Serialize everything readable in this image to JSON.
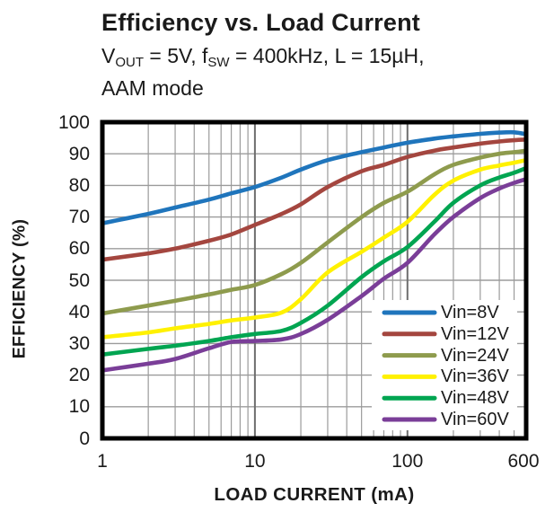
{
  "title": "Efficiency vs. Load Current",
  "subtitle_line1": [
    {
      "t": "V"
    },
    {
      "t": "OUT",
      "sub": true
    },
    {
      "t": " = 5V, f"
    },
    {
      "t": "SW",
      "sub": true
    },
    {
      "t": " = 400kHz, L = 15µH,"
    }
  ],
  "subtitle_line2": "AAM mode",
  "colors": {
    "text": "#1a1a1a",
    "frame": "#000000",
    "grid_minor": "#9b9b9b",
    "grid_major": "#6e6e6e",
    "legend_bg": "#ffffff"
  },
  "chart_data": {
    "type": "line",
    "title": "Efficiency vs. Load Current",
    "subtitle": "VOUT = 5V, fSW = 400kHz, L = 15µH, AAM mode",
    "xlabel": "LOAD CURRENT  (mA)",
    "ylabel": "EFFICIENCY  (%)",
    "x_scale": "log",
    "xlim": [
      1,
      600
    ],
    "ylim": [
      0,
      100
    ],
    "x_ticks": [
      1,
      10,
      100,
      600
    ],
    "y_ticks": [
      0,
      10,
      20,
      30,
      40,
      50,
      60,
      70,
      80,
      90,
      100
    ],
    "grid": {
      "on": true,
      "y_step": 10,
      "x_major": [
        10,
        100
      ],
      "x_minor": [
        2,
        3,
        4,
        5,
        6,
        7,
        8,
        9,
        20,
        30,
        40,
        50,
        60,
        70,
        80,
        90,
        200,
        300,
        400,
        500
      ]
    },
    "legend_position": "bottom-right",
    "x": [
      1,
      2,
      3,
      5,
      7,
      10,
      15,
      20,
      30,
      50,
      70,
      100,
      150,
      200,
      300,
      400,
      500,
      600
    ],
    "series": [
      {
        "name": "Vin=8V",
        "color": "#1f75bc",
        "values": [
          68,
          71,
          73,
          75.5,
          77.5,
          79.5,
          82.5,
          85,
          88,
          90.5,
          92,
          93.5,
          94.8,
          95.5,
          96.3,
          96.7,
          96.8,
          96.2
        ]
      },
      {
        "name": "Vin=12V",
        "color": "#a4463f",
        "values": [
          56.5,
          58.5,
          60,
          62.5,
          64.5,
          67.5,
          71,
          74,
          79.5,
          84.5,
          86.5,
          89,
          91,
          92,
          93.2,
          93.9,
          94.3,
          94.5
        ]
      },
      {
        "name": "Vin=24V",
        "color": "#8e9b4d",
        "values": [
          39.5,
          42,
          43.5,
          45.5,
          47,
          48.5,
          52,
          55.5,
          62,
          70,
          74.5,
          78,
          83.5,
          86.5,
          88.8,
          90,
          90.5,
          91
        ]
      },
      {
        "name": "Vin=36V",
        "color": "#fff100",
        "values": [
          32,
          33.5,
          34.8,
          36.2,
          37.3,
          38.2,
          39.8,
          44,
          52.5,
          59,
          63.5,
          68.5,
          77,
          81.5,
          85,
          86.3,
          87.2,
          88
        ]
      },
      {
        "name": "Vin=48V",
        "color": "#00a551",
        "values": [
          26.5,
          28.3,
          29.3,
          30.8,
          32,
          33,
          34,
          36.5,
          42,
          51,
          56,
          60.5,
          68.5,
          74.5,
          80,
          82.5,
          84,
          85.5
        ]
      },
      {
        "name": "Vin=60V",
        "color": "#7a3e98",
        "values": [
          21.5,
          23.6,
          25.1,
          28.5,
          30.5,
          30.8,
          31.3,
          33,
          37.5,
          45,
          50.5,
          55.5,
          64.5,
          70,
          76,
          79,
          80.8,
          82
        ]
      }
    ]
  }
}
